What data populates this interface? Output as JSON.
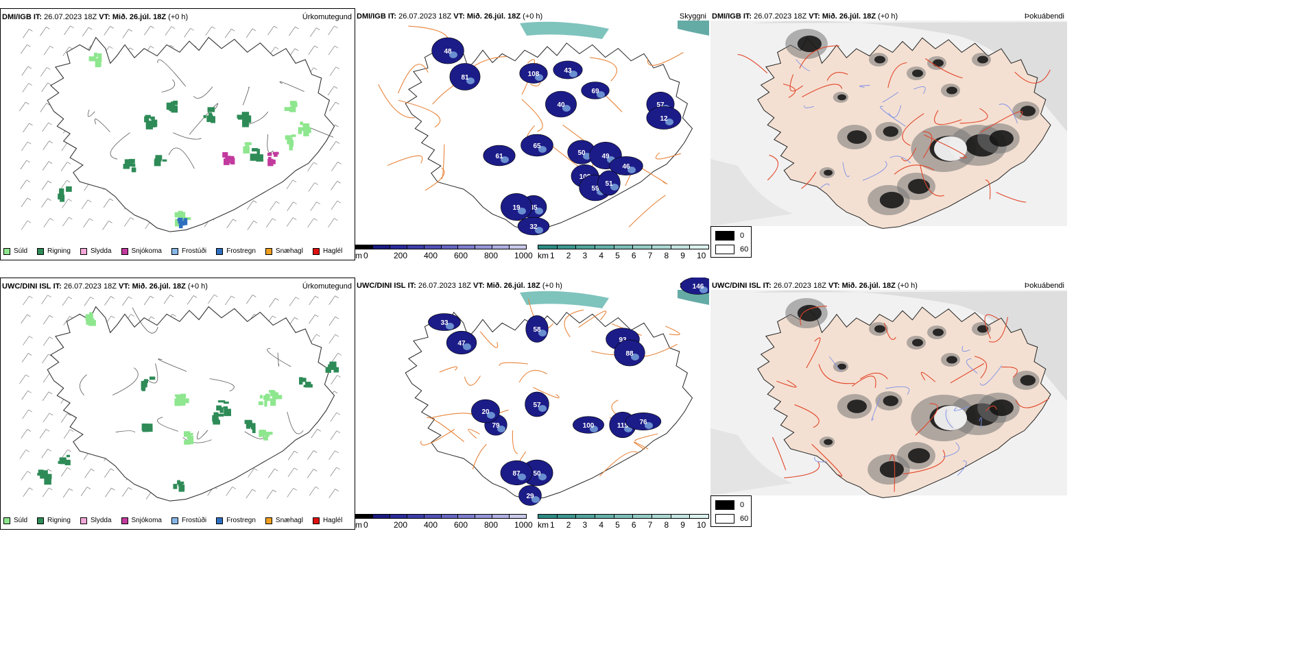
{
  "rows": [
    {
      "model": "DMI/IGB",
      "it_label": "IT:",
      "it_value": "26.07.2023 18Z",
      "vt_label": "VT:",
      "vt_value": "Mið. 26.júl. 18Z",
      "lead": "(+0 h)",
      "visibility_numbers": [
        "48",
        "81",
        "108",
        "43",
        "40",
        "69",
        "57",
        "12",
        "50",
        "49",
        "61",
        "65",
        "46",
        "108",
        "59",
        "51",
        "45",
        "32",
        "19"
      ]
    },
    {
      "model": "UWC/DINI ISL",
      "it_label": "IT:",
      "it_value": "26.07.2023 18Z",
      "vt_label": "VT:",
      "vt_value": "Mið. 26.júl. 18Z",
      "lead": "(+0 h)",
      "visibility_numbers": [
        "33",
        "47",
        "58",
        "93",
        "88",
        "146",
        "57",
        "100",
        "115",
        "76",
        "79",
        "20",
        "50",
        "29",
        "87"
      ]
    }
  ],
  "panel_titles": {
    "precip": "Úrkomutegund",
    "visibility": "Skyggni",
    "fog": "Þokuábendi"
  },
  "precip_legend": [
    {
      "label": "Súld",
      "color": "#8ee68e"
    },
    {
      "label": "Rigning",
      "color": "#2e8b57"
    },
    {
      "label": "Slydda",
      "color": "#f4a8d8"
    },
    {
      "label": "Snjókoma",
      "color": "#c23a9e"
    },
    {
      "label": "Frostúði",
      "color": "#87b7e8"
    },
    {
      "label": "Frostregn",
      "color": "#2f6fc0"
    },
    {
      "label": "Snæhagl",
      "color": "#f0a020"
    },
    {
      "label": "Haglél",
      "color": "#e01010"
    }
  ],
  "visibility_colorbar_m": {
    "unit": "m",
    "ticks": [
      "0",
      "200",
      "400",
      "600",
      "800",
      "1000"
    ],
    "colors": [
      "#000000",
      "#1a1a80",
      "#2b2b99",
      "#3d3da8",
      "#5050b4",
      "#6666c0",
      "#7d7dcc",
      "#9595d6",
      "#aeaee0",
      "#c8c8ea"
    ]
  },
  "visibility_colorbar_km": {
    "unit": "km",
    "ticks": [
      "1",
      "2",
      "3",
      "4",
      "5",
      "6",
      "7",
      "8",
      "9",
      "10"
    ],
    "colors": [
      "#2e8b84",
      "#3e968f",
      "#52a39c",
      "#66b0a9",
      "#7dbdb6",
      "#94cac4",
      "#abd7d2",
      "#c3e4e0",
      "#dbf1ee"
    ]
  },
  "fog_legend": {
    "high": "0",
    "low": "60",
    "high_color": "#000000",
    "low_color": "#ffffff"
  }
}
